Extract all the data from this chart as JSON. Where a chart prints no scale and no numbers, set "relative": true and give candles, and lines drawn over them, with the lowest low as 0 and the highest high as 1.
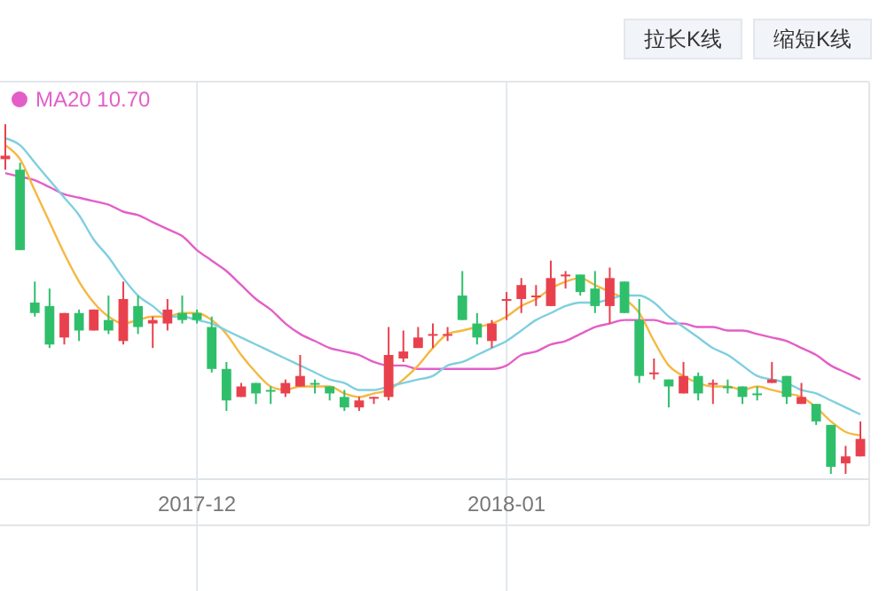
{
  "chart_data": {
    "type": "candlestick",
    "relative": true,
    "grid": "x",
    "legend": "top left",
    "annotations": [
      "拉长K线",
      "缩短K线"
    ],
    "categories": [
      null,
      null,
      null,
      null,
      null,
      null,
      null,
      null,
      null,
      null,
      null,
      null,
      null,
      "2017-12",
      null,
      null,
      null,
      null,
      null,
      null,
      null,
      null,
      null,
      null,
      null,
      null,
      null,
      null,
      null,
      null,
      null,
      null,
      null,
      null,
      "2018-01",
      null,
      null,
      null,
      null,
      null,
      null,
      null,
      null,
      null,
      null,
      null,
      null,
      null,
      null,
      null,
      null,
      null,
      null,
      null,
      null,
      null,
      null,
      null,
      null
    ],
    "ohlc": [
      [
        0.9,
        1,
        0.87,
        0.91
      ],
      [
        0.87,
        0.89,
        0.64,
        0.64
      ],
      [
        0.49,
        0.55,
        0.45,
        0.46
      ],
      [
        0.48,
        0.53,
        0.36,
        0.37
      ],
      [
        0.39,
        0.46,
        0.37,
        0.46
      ],
      [
        0.46,
        0.47,
        0.38,
        0.41
      ],
      [
        0.41,
        0.47,
        0.41,
        0.47
      ],
      [
        0.44,
        0.51,
        0.4,
        0.41
      ],
      [
        0.38,
        0.55,
        0.37,
        0.5
      ],
      [
        0.48,
        0.51,
        0.4,
        0.42
      ],
      [
        0.43,
        0.45,
        0.36,
        0.44
      ],
      [
        0.43,
        0.5,
        0.41,
        0.47
      ],
      [
        0.46,
        0.51,
        0.43,
        0.44
      ],
      [
        0.46,
        0.47,
        0.43,
        0.44
      ],
      [
        0.42,
        0.45,
        0.29,
        0.3
      ],
      [
        0.3,
        0.32,
        0.18,
        0.21
      ],
      [
        0.22,
        0.26,
        0.22,
        0.25
      ],
      [
        0.26,
        0.26,
        0.2,
        0.23
      ],
      [
        0.24,
        0.25,
        0.2,
        0.24
      ],
      [
        0.23,
        0.27,
        0.22,
        0.26
      ],
      [
        0.25,
        0.34,
        0.25,
        0.28
      ],
      [
        0.26,
        0.27,
        0.23,
        0.26
      ],
      [
        0.25,
        0.25,
        0.21,
        0.23
      ],
      [
        0.22,
        0.24,
        0.18,
        0.19
      ],
      [
        0.19,
        0.22,
        0.18,
        0.21
      ],
      [
        0.22,
        0.22,
        0.2,
        0.22
      ],
      [
        0.22,
        0.42,
        0.21,
        0.34
      ],
      [
        0.33,
        0.41,
        0.32,
        0.35
      ],
      [
        0.36,
        0.42,
        0.36,
        0.39
      ],
      [
        0.4,
        0.43,
        0.36,
        0.4
      ],
      [
        0.4,
        0.42,
        0.38,
        0.4
      ],
      [
        0.51,
        0.58,
        0.44,
        0.44
      ],
      [
        0.43,
        0.46,
        0.37,
        0.39
      ],
      [
        0.38,
        0.44,
        0.36,
        0.43
      ],
      [
        0.5,
        0.52,
        0.44,
        0.5
      ],
      [
        0.5,
        0.56,
        0.46,
        0.54
      ],
      [
        0.51,
        0.54,
        0.48,
        0.51
      ],
      [
        0.48,
        0.61,
        0.48,
        0.56
      ],
      [
        0.57,
        0.58,
        0.53,
        0.57
      ],
      [
        0.57,
        0.57,
        0.51,
        0.52
      ],
      [
        0.53,
        0.58,
        0.46,
        0.48
      ],
      [
        0.48,
        0.59,
        0.43,
        0.56
      ],
      [
        0.55,
        0.55,
        0.46,
        0.46
      ],
      [
        0.44,
        0.5,
        0.26,
        0.28
      ],
      [
        0.29,
        0.33,
        0.27,
        0.29
      ],
      [
        0.27,
        0.27,
        0.19,
        0.25
      ],
      [
        0.23,
        0.32,
        0.23,
        0.28
      ],
      [
        0.28,
        0.29,
        0.21,
        0.23
      ],
      [
        0.26,
        0.27,
        0.2,
        0.26
      ],
      [
        0.25,
        0.27,
        0.23,
        0.25
      ],
      [
        0.25,
        0.25,
        0.2,
        0.22
      ],
      [
        0.23,
        0.25,
        0.21,
        0.23
      ],
      [
        0.26,
        0.32,
        0.26,
        0.27
      ],
      [
        0.28,
        0.28,
        0.2,
        0.22
      ],
      [
        0.2,
        0.26,
        0.2,
        0.22
      ],
      [
        0.2,
        0.2,
        0.14,
        0.15
      ],
      [
        0.14,
        0.14,
        0,
        0.02
      ],
      [
        0.03,
        0.08,
        0,
        0.05
      ],
      [
        0.05,
        0.15,
        0.05,
        0.1
      ]
    ],
    "colors": [
      "#e8414d",
      "#2fbf6b",
      "#2fbf6b",
      "#2fbf6b",
      "#e8414d",
      "#2fbf6b",
      "#e8414d",
      "#2fbf6b",
      "#e8414d",
      "#2fbf6b",
      "#e8414d",
      "#e8414d",
      "#2fbf6b",
      "#2fbf6b",
      "#2fbf6b",
      "#2fbf6b",
      "#e8414d",
      "#2fbf6b",
      "#2fbf6b",
      "#e8414d",
      "#e8414d",
      "#2fbf6b",
      "#2fbf6b",
      "#2fbf6b",
      "#e8414d",
      "#e8414d",
      "#e8414d",
      "#e8414d",
      "#e8414d",
      "#e8414d",
      "#e8414d",
      "#2fbf6b",
      "#2fbf6b",
      "#e8414d",
      "#e8414d",
      "#e8414d",
      "#e8414d",
      "#e8414d",
      "#e8414d",
      "#2fbf6b",
      "#2fbf6b",
      "#e8414d",
      "#2fbf6b",
      "#2fbf6b",
      "#e8414d",
      "#2fbf6b",
      "#e8414d",
      "#2fbf6b",
      "#e8414d",
      "#2fbf6b",
      "#2fbf6b",
      "#2fbf6b",
      "#e8414d",
      "#2fbf6b",
      "#e8414d",
      "#2fbf6b",
      "#2fbf6b",
      "#e8414d",
      "#e8414d"
    ],
    "series": [
      {
        "type": "line",
        "name": "MA20 10.70",
        "color": "#e35fc7",
        "values": [
          0.86,
          0.85,
          0.84,
          0.82,
          0.8,
          0.79,
          0.78,
          0.77,
          0.75,
          0.74,
          0.72,
          0.7,
          0.68,
          0.64,
          0.61,
          0.58,
          0.54,
          0.5,
          0.47,
          0.43,
          0.4,
          0.38,
          0.36,
          0.35,
          0.34,
          0.32,
          0.31,
          0.31,
          0.3,
          0.3,
          0.3,
          0.3,
          0.3,
          0.3,
          0.31,
          0.34,
          0.35,
          0.37,
          0.38,
          0.4,
          0.42,
          0.43,
          0.44,
          0.44,
          0.44,
          0.43,
          0.43,
          0.42,
          0.42,
          0.41,
          0.41,
          0.4,
          0.39,
          0.38,
          0.36,
          0.34,
          0.31,
          0.29,
          0.27
        ]
      },
      {
        "type": "line",
        "color": "#f5b841",
        "values": [
          0.94,
          0.9,
          0.81,
          0.72,
          0.63,
          0.55,
          0.49,
          0.45,
          0.43,
          0.44,
          0.45,
          0.45,
          0.46,
          0.46,
          0.44,
          0.4,
          0.34,
          0.29,
          0.25,
          0.24,
          0.25,
          0.25,
          0.25,
          0.23,
          0.22,
          0.23,
          0.24,
          0.27,
          0.31,
          0.36,
          0.4,
          0.41,
          0.42,
          0.43,
          0.45,
          0.48,
          0.5,
          0.53,
          0.55,
          0.56,
          0.54,
          0.52,
          0.5,
          0.46,
          0.38,
          0.31,
          0.28,
          0.26,
          0.25,
          0.25,
          0.24,
          0.25,
          0.24,
          0.23,
          0.22,
          0.19,
          0.15,
          0.12,
          0.11
        ]
      },
      {
        "type": "line",
        "color": "#7fcfe0",
        "values": [
          0.96,
          0.94,
          0.89,
          0.84,
          0.79,
          0.74,
          0.67,
          0.62,
          0.56,
          0.51,
          0.48,
          0.45,
          0.45,
          0.44,
          0.43,
          0.41,
          0.39,
          0.37,
          0.35,
          0.33,
          0.31,
          0.29,
          0.27,
          0.26,
          0.24,
          0.24,
          0.25,
          0.26,
          0.27,
          0.28,
          0.31,
          0.32,
          0.34,
          0.36,
          0.38,
          0.41,
          0.44,
          0.46,
          0.48,
          0.49,
          0.49,
          0.5,
          0.51,
          0.51,
          0.49,
          0.45,
          0.42,
          0.39,
          0.36,
          0.34,
          0.31,
          0.28,
          0.27,
          0.26,
          0.24,
          0.23,
          0.21,
          0.19,
          0.17
        ]
      }
    ]
  }
}
